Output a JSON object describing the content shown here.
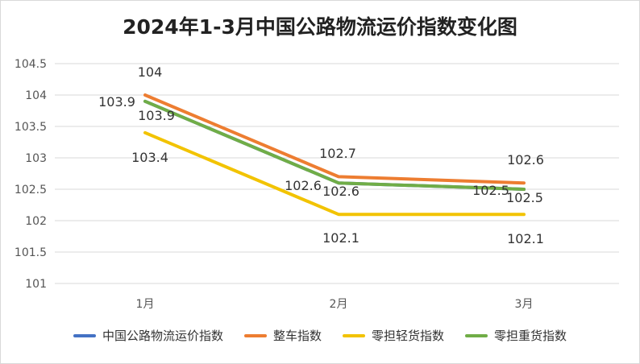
{
  "chart_data": {
    "type": "line",
    "title": "2024年1-3月中国公路物流运价指数变化图",
    "categories": [
      "1月",
      "2月",
      "3月"
    ],
    "ylim": [
      101,
      104.5
    ],
    "yticks": [
      "101",
      "101.5",
      "102",
      "102.5",
      "103",
      "103.5",
      "104",
      "104.5"
    ],
    "grid": true,
    "legend_position": "bottom",
    "series": [
      {
        "name": "中国公路物流运价指数",
        "color": "#4472c4",
        "values": [
          103.9,
          102.6,
          102.5
        ],
        "labels": []
      },
      {
        "name": "整车指数",
        "color": "#ed7d31",
        "values": [
          104,
          102.7,
          102.6
        ],
        "labels": [
          "104",
          "102.7",
          "102.6"
        ]
      },
      {
        "name": "零担轻货指数",
        "color": "#f2c300",
        "values": [
          103.4,
          102.1,
          102.1
        ],
        "labels": [
          "103.4",
          "102.1",
          "102.1"
        ]
      },
      {
        "name": "零担重货指数",
        "color": "#70ad47",
        "values": [
          103.9,
          102.6,
          102.5
        ],
        "labels": [
          "103.9",
          "102.6",
          "102.5"
        ]
      }
    ],
    "extra_labels": [
      {
        "series": 0,
        "point": 0,
        "text": "103.9"
      },
      {
        "series": 0,
        "point": 1,
        "text": "102.6"
      },
      {
        "series": 0,
        "point": 2,
        "text": "102.5"
      }
    ]
  }
}
